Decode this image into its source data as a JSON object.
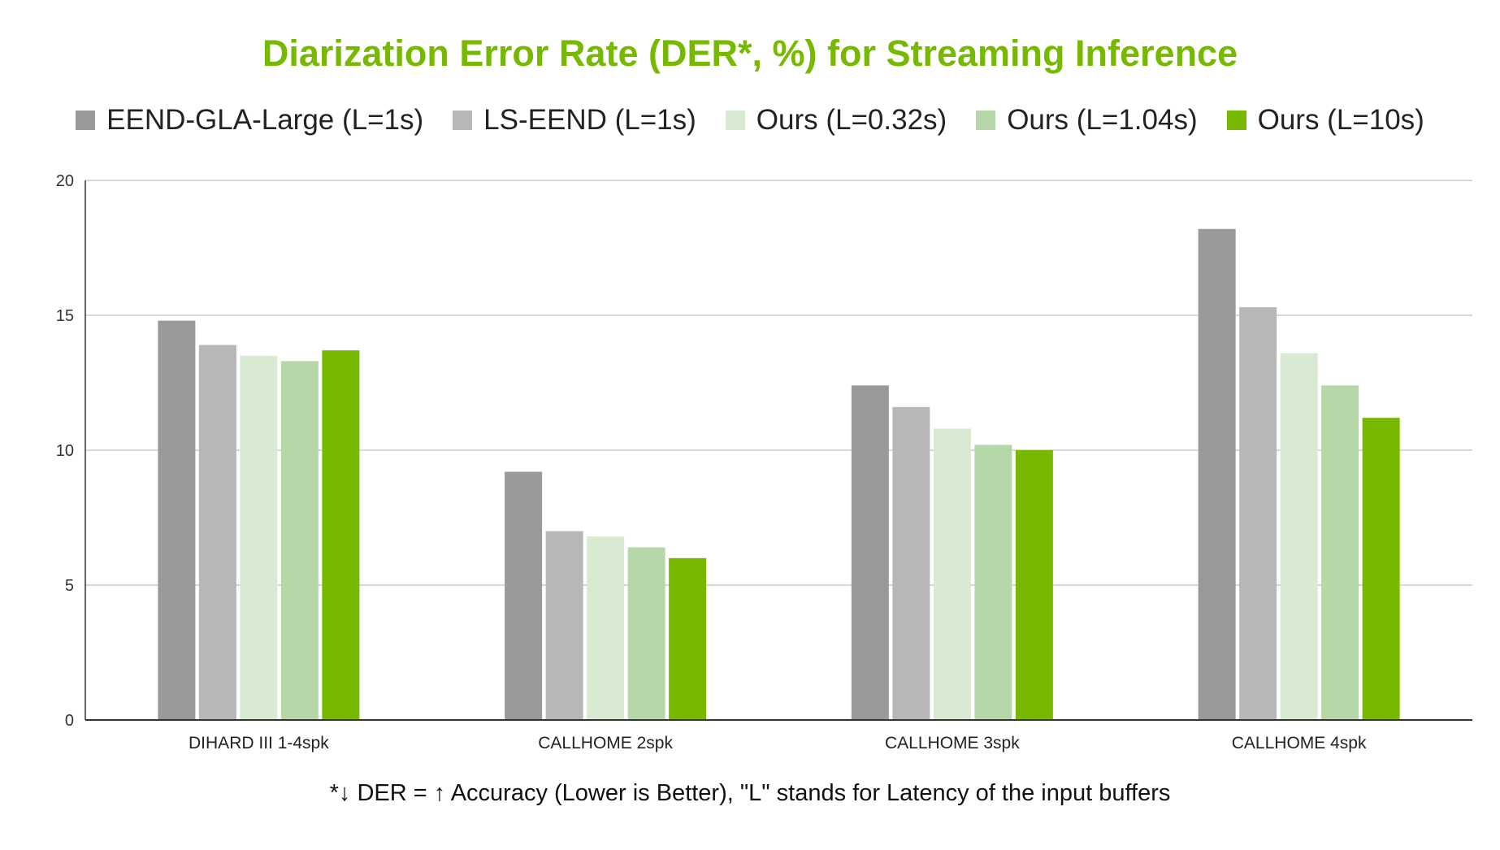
{
  "chart_data": {
    "type": "bar",
    "title": "Diarization Error Rate (DER*, %) for Streaming Inference",
    "categories": [
      "DIHARD III 1-4spk",
      "CALLHOME 2spk",
      "CALLHOME 3spk",
      "CALLHOME 4spk"
    ],
    "series": [
      {
        "name": "EEND-GLA-Large (L=1s)",
        "color": "#999999",
        "values": [
          14.8,
          9.2,
          12.4,
          18.2
        ]
      },
      {
        "name": "LS-EEND (L=1s)",
        "color": "#b7b7b7",
        "values": [
          13.9,
          7.0,
          11.6,
          15.3
        ]
      },
      {
        "name": "Ours (L=0.32s)",
        "color": "#d9ead3",
        "values": [
          13.5,
          6.8,
          10.8,
          13.6
        ]
      },
      {
        "name": "Ours (L=1.04s)",
        "color": "#b6d7a8",
        "values": [
          13.3,
          6.4,
          10.2,
          12.4
        ]
      },
      {
        "name": "Ours (L=10s)",
        "color": "#76b900",
        "values": [
          13.7,
          6.0,
          10.0,
          11.2
        ]
      }
    ],
    "xlabel": "",
    "ylabel": "",
    "ylim": [
      0,
      20
    ],
    "yticks": [
      "0",
      "5",
      "10",
      "15",
      "20"
    ],
    "grid": true,
    "legend_position": "top",
    "footnote": "*↓ DER = ↑ Accuracy (Lower is Better), \"L\" stands for Latency of the input buffers"
  }
}
